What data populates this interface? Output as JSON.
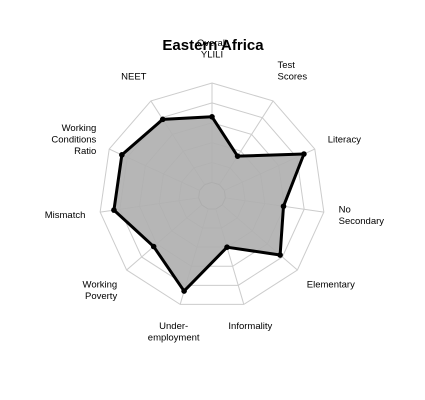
{
  "chart_data": {
    "type": "radar",
    "title": "Eastern Africa",
    "axes": [
      "Overall YLILI",
      "Test Scores",
      "Literacy",
      "No Secondary",
      "Elementary",
      "Informality",
      "Under-employment",
      "Working Poverty",
      "Mismatch",
      "Working Conditions Ratio",
      "NEET"
    ],
    "axis_label_lines": [
      [
        "Overall",
        "YLILI"
      ],
      [
        "Test",
        "Scores"
      ],
      [
        "Literacy"
      ],
      [
        "No",
        "Secondary"
      ],
      [
        "Elementary"
      ],
      [
        "Informality"
      ],
      [
        "Under-",
        "employment"
      ],
      [
        "Working",
        "Poverty"
      ],
      [
        "Mismatch"
      ],
      [
        "Working",
        "Conditions",
        "Ratio"
      ],
      [
        "NEET"
      ]
    ],
    "values": [
      0.66,
      0.34,
      0.88,
      0.59,
      0.77,
      0.4,
      0.86,
      0.64,
      0.86,
      0.86,
      0.78
    ],
    "range": [
      0,
      1
    ],
    "grid_levels": 5,
    "center_hole": 0.12,
    "grid": true,
    "legend": "none",
    "colors": {
      "fill": "#b0b0b0",
      "line": "#000000",
      "grid": "#cccccc",
      "inner_grid": "#888888"
    }
  }
}
